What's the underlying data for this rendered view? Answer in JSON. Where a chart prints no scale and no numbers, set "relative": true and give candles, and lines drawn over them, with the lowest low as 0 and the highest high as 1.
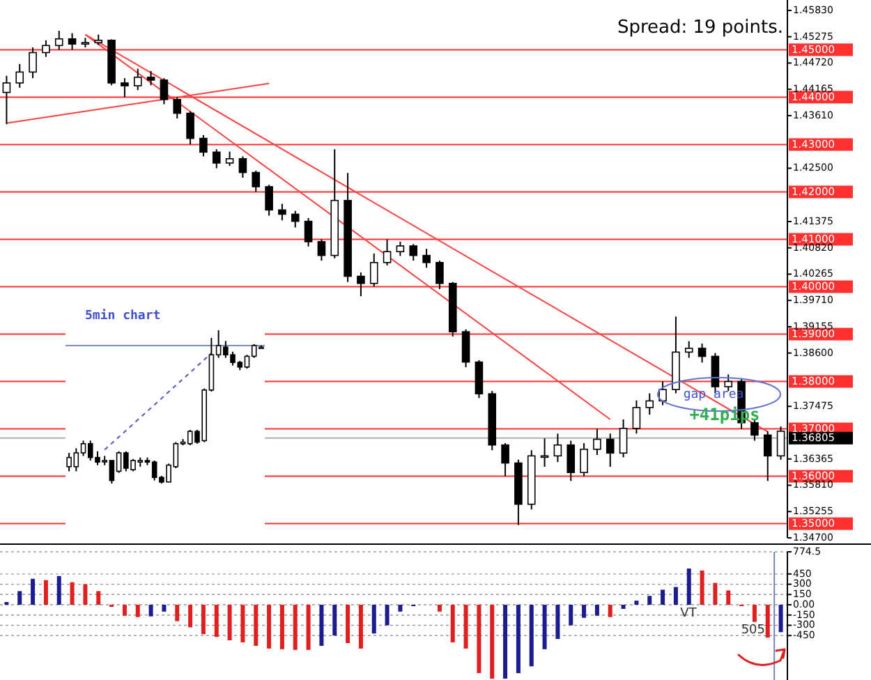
{
  "chart_data": [
    {
      "type": "candlestick",
      "categories": [
        null,
        null,
        null,
        null,
        null,
        null,
        null,
        null,
        null,
        null,
        null,
        null,
        null,
        null,
        null,
        null,
        null,
        null,
        null,
        null,
        null,
        null,
        null,
        null,
        null,
        null,
        null,
        null,
        null,
        null,
        null,
        null,
        null,
        null,
        null,
        null,
        null,
        null,
        null,
        null,
        null,
        null,
        null,
        null,
        null,
        null,
        null,
        null,
        null,
        null,
        null,
        null,
        null,
        null,
        null,
        null,
        null,
        null,
        null,
        null
      ],
      "ohlc": [
        [
          1.441,
          1.4445,
          1.4343,
          1.443
        ],
        [
          1.443,
          1.447,
          1.442,
          1.4453
        ],
        [
          1.4453,
          1.4505,
          1.444,
          1.4494
        ],
        [
          1.4494,
          1.452,
          1.4485,
          1.4509
        ],
        [
          1.4509,
          1.454,
          1.45,
          1.4523
        ],
        [
          1.4523,
          1.4535,
          1.45,
          1.4512
        ],
        [
          1.4512,
          1.4525,
          1.4505,
          1.4515
        ],
        [
          1.4515,
          1.4532,
          1.451,
          1.452
        ],
        [
          1.452,
          1.4522,
          1.4425,
          1.443
        ],
        [
          1.443,
          1.444,
          1.44,
          1.4424
        ],
        [
          1.4424,
          1.446,
          1.4415,
          1.4442
        ],
        [
          1.4442,
          1.4455,
          1.4425,
          1.4436
        ],
        [
          1.4436,
          1.444,
          1.4385,
          1.4395
        ],
        [
          1.4395,
          1.44,
          1.4355,
          1.4366
        ],
        [
          1.4366,
          1.437,
          1.43,
          1.4313
        ],
        [
          1.4313,
          1.432,
          1.4275,
          1.4284
        ],
        [
          1.4284,
          1.429,
          1.425,
          1.4261
        ],
        [
          1.4261,
          1.4285,
          1.4255,
          1.427
        ],
        [
          1.427,
          1.4275,
          1.423,
          1.4241
        ],
        [
          1.4241,
          1.4245,
          1.42,
          1.4211
        ],
        [
          1.4211,
          1.4215,
          1.415,
          1.4162
        ],
        [
          1.4162,
          1.4175,
          1.414,
          1.4153
        ],
        [
          1.4153,
          1.416,
          1.4125,
          1.4138
        ],
        [
          1.4138,
          1.4145,
          1.4085,
          1.4095
        ],
        [
          1.4095,
          1.41,
          1.4055,
          1.4066
        ],
        [
          1.4066,
          1.429,
          1.406,
          1.4182
        ],
        [
          1.4182,
          1.424,
          1.401,
          1.4022
        ],
        [
          1.4022,
          1.403,
          1.398,
          1.4007
        ],
        [
          1.4007,
          1.407,
          1.4,
          1.4051
        ],
        [
          1.4051,
          1.41,
          1.4045,
          1.4074
        ],
        [
          1.4074,
          1.4095,
          1.4065,
          1.4086
        ],
        [
          1.4086,
          1.409,
          1.4055,
          1.4066
        ],
        [
          1.4066,
          1.408,
          1.404,
          1.4051
        ],
        [
          1.4051,
          1.4055,
          1.3995,
          1.4007
        ],
        [
          1.4007,
          1.401,
          1.3895,
          1.3905
        ],
        [
          1.3905,
          1.391,
          1.383,
          1.3841
        ],
        [
          1.3841,
          1.3845,
          1.3765,
          1.3774
        ],
        [
          1.3774,
          1.378,
          1.3655,
          1.3666
        ],
        [
          1.3666,
          1.367,
          1.36,
          1.3628
        ],
        [
          1.3628,
          1.3635,
          1.3497,
          1.3541
        ],
        [
          1.3541,
          1.3655,
          1.353,
          1.3643
        ],
        [
          1.3643,
          1.368,
          1.362,
          1.3643
        ],
        [
          1.3643,
          1.369,
          1.363,
          1.3666
        ],
        [
          1.3666,
          1.3675,
          1.359,
          1.3608
        ],
        [
          1.3608,
          1.367,
          1.36,
          1.3657
        ],
        [
          1.3657,
          1.37,
          1.3645,
          1.3678
        ],
        [
          1.3678,
          1.369,
          1.362,
          1.3649
        ],
        [
          1.3649,
          1.372,
          1.364,
          1.3701
        ],
        [
          1.3701,
          1.376,
          1.369,
          1.3745
        ],
        [
          1.3745,
          1.3775,
          1.373,
          1.3759
        ],
        [
          1.3759,
          1.38,
          1.375,
          1.3783
        ],
        [
          1.3783,
          1.3937,
          1.3775,
          1.3862
        ],
        [
          1.3862,
          1.3885,
          1.385,
          1.387
        ],
        [
          1.387,
          1.388,
          1.384,
          1.3853
        ],
        [
          1.3853,
          1.386,
          1.3775,
          1.3789
        ],
        [
          1.3789,
          1.3815,
          1.378,
          1.38
        ],
        [
          1.38,
          1.3805,
          1.37,
          1.3713
        ],
        [
          1.3713,
          1.372,
          1.3675,
          1.3687
        ],
        [
          1.3687,
          1.3695,
          1.359,
          1.3643
        ],
        [
          1.3643,
          1.3705,
          1.3635,
          1.3695
        ]
      ],
      "ylim": [
        1.347,
        1.4605
      ],
      "yticks": [
        {
          "value": 1.4583,
          "label": "1.45830"
        },
        1.45275,
        {
          "value": 1.4472,
          "label": "1.44720"
        },
        1.44165,
        {
          "value": 1.4361,
          "label": "1.43610"
        },
        {
          "value": 1.425,
          "label": "1.42500"
        },
        1.41375,
        {
          "value": 1.4082,
          "label": "1.40820"
        },
        1.40265,
        {
          "value": 1.3971,
          "label": "1.39710"
        },
        1.39155,
        {
          "value": 1.386,
          "label": "1.38600"
        },
        1.37475,
        1.36365,
        {
          "value": 1.3581,
          "label": "1.35810"
        },
        1.35255,
        {
          "value": 1.347,
          "label": "1.34700"
        }
      ],
      "tick_labels": "y",
      "series": [
        {
          "type": "line",
          "values": [
            null,
            null,
            null,
            null,
            null,
            null,
            1.4532,
            null,
            null,
            null,
            null,
            null,
            null,
            null,
            null,
            null,
            null,
            null,
            null,
            null,
            null,
            null,
            null,
            null,
            null,
            null,
            null,
            null,
            null,
            null,
            null,
            null,
            null,
            null,
            null,
            null,
            null,
            null,
            null,
            null,
            null,
            null,
            null,
            null,
            null,
            null,
            1.372,
            null,
            null,
            null,
            null,
            null,
            null,
            null,
            null,
            null,
            null,
            null,
            null,
            null
          ],
          "color": "#ff4040"
        },
        {
          "type": "line",
          "values": [
            null,
            null,
            null,
            null,
            null,
            null,
            1.4532,
            null,
            null,
            null,
            null,
            null,
            null,
            null,
            null,
            null,
            null,
            null,
            null,
            null,
            null,
            null,
            null,
            null,
            null,
            null,
            null,
            null,
            null,
            null,
            null,
            null,
            null,
            null,
            null,
            null,
            null,
            null,
            null,
            null,
            null,
            null,
            null,
            null,
            null,
            null,
            null,
            null,
            null,
            null,
            null,
            null,
            null,
            null,
            null,
            null,
            null,
            null,
            1.3694,
            null
          ],
          "color": "#ff4040"
        },
        {
          "type": "line",
          "values": [
            1.4345,
            null,
            null,
            null,
            null,
            null,
            null,
            null,
            null,
            null,
            null,
            null,
            null,
            null,
            null,
            null,
            null,
            null,
            null,
            null,
            1.4429,
            null,
            null,
            null,
            null,
            null,
            null,
            null,
            null,
            null,
            null,
            null,
            null,
            null,
            null,
            null,
            null,
            null,
            null,
            null,
            null,
            null,
            null,
            null,
            null,
            null,
            null,
            null,
            null,
            null,
            null,
            null,
            null,
            null,
            null,
            null,
            null,
            null,
            null,
            null
          ],
          "color": "#ff4040"
        }
      ],
      "ref_lines": [
        {
          "axis": "y",
          "value": 1.45,
          "label": "1.45000",
          "color": "#ff3030"
        },
        {
          "axis": "y",
          "value": 1.44,
          "label": "1.44000",
          "color": "#ff3030"
        },
        {
          "axis": "y",
          "value": 1.43,
          "label": "1.43000",
          "color": "#ff3030"
        },
        {
          "axis": "y",
          "value": 1.42,
          "label": "1.42000",
          "color": "#ff3030"
        },
        {
          "axis": "y",
          "value": 1.41,
          "label": "1.41000",
          "color": "#ff3030"
        },
        {
          "axis": "y",
          "value": 1.4,
          "label": "1.40000",
          "color": "#ff3030"
        },
        {
          "axis": "y",
          "value": 1.39,
          "label": "1.39000",
          "color": "#ff3030"
        },
        {
          "axis": "y",
          "value": 1.38,
          "label": "1.38000",
          "color": "#ff3030"
        },
        {
          "axis": "y",
          "value": 1.37,
          "label": "1.37000",
          "color": "#ff3030"
        },
        {
          "axis": "y",
          "value": 1.36,
          "label": "1.36000",
          "color": "#ff3030"
        },
        {
          "axis": "y",
          "value": 1.35,
          "label": "1.35000",
          "color": "#ff3030"
        },
        {
          "axis": "y",
          "value": 1.36805,
          "label": "1.36805",
          "color": "#b0b0b0"
        }
      ],
      "annotations": [
        "Spread: 19 points.",
        "gap area",
        "+41pips"
      ]
    },
    {
      "type": "candlestick",
      "title": "5min chart",
      "relative": true,
      "categories": [
        null,
        null,
        null,
        null,
        null,
        null,
        null,
        null,
        null,
        null,
        null,
        null,
        null,
        null,
        null,
        null,
        null,
        null,
        null,
        null,
        null,
        null,
        null,
        null,
        null,
        null,
        null,
        null
      ],
      "ohlc": [
        [
          0.11,
          0.2,
          0.08,
          0.17
        ],
        [
          0.11,
          0.23,
          0.08,
          0.2
        ],
        [
          0.2,
          0.28,
          0.18,
          0.26
        ],
        [
          0.26,
          0.28,
          0.15,
          0.17
        ],
        [
          0.17,
          0.21,
          0.12,
          0.14
        ],
        [
          0.15,
          0.18,
          0.12,
          0.15
        ],
        [
          0.15,
          0.15,
          0,
          0.02
        ],
        [
          0.08,
          0.21,
          0.07,
          0.2
        ],
        [
          0.2,
          0.21,
          0.08,
          0.1
        ],
        [
          0.09,
          0.16,
          0.08,
          0.15
        ],
        [
          0.14,
          0.17,
          0.11,
          0.15
        ],
        [
          0.15,
          0.17,
          0.12,
          0.14
        ],
        [
          0.14,
          0.15,
          0.02,
          0.04
        ],
        [
          0.04,
          0.05,
          0,
          0.01
        ],
        [
          0.01,
          0.13,
          0.01,
          0.12
        ],
        [
          0.11,
          0.27,
          0.1,
          0.26
        ],
        [
          0.26,
          0.29,
          0.25,
          0.27
        ],
        [
          0.26,
          0.35,
          0.25,
          0.34
        ],
        [
          0.34,
          0.35,
          0.26,
          0.27
        ],
        [
          0.28,
          0.62,
          0.27,
          0.61
        ],
        [
          0.61,
          0.95,
          0.6,
          0.84
        ],
        [
          0.84,
          1,
          0.82,
          0.9
        ],
        [
          0.89,
          0.93,
          0.82,
          0.84
        ],
        [
          0.84,
          0.86,
          0.77,
          0.79
        ],
        [
          0.79,
          0.8,
          0.74,
          0.76
        ],
        [
          0.76,
          0.84,
          0.75,
          0.83
        ],
        [
          0.83,
          0.91,
          0.82,
          0.9
        ],
        [
          0.89,
          0.9,
          0.88,
          0.89
        ]
      ],
      "tick_labels": false,
      "series": [
        {
          "type": "line",
          "values": [
            null,
            null,
            null,
            null,
            null,
            0.22,
            null,
            null,
            null,
            null,
            null,
            null,
            null,
            null,
            null,
            null,
            null,
            null,
            null,
            null,
            0.85,
            null,
            null,
            null,
            null,
            null,
            null,
            null
          ],
          "color": "#5050d0",
          "line_style": "dashed"
        }
      ],
      "ref_lines": [
        {
          "axis": "y",
          "value": 0.9,
          "color": "#7f8fc0"
        }
      ]
    },
    {
      "type": "bar",
      "categories": [
        null,
        null,
        null,
        null,
        null,
        null,
        null,
        null,
        null,
        null,
        null,
        null,
        null,
        null,
        null,
        null,
        null,
        null,
        null,
        null,
        null,
        null,
        null,
        null,
        null,
        null,
        null,
        null,
        null,
        null,
        null,
        null,
        null,
        null,
        null,
        null,
        null,
        null,
        null,
        null,
        null,
        null,
        null,
        null,
        null,
        null,
        null,
        null,
        null,
        null,
        null,
        null,
        null,
        null,
        null,
        null,
        null,
        null,
        null,
        null
      ],
      "values": [
        40,
        200,
        380,
        360,
        420,
        330,
        300,
        200,
        -30,
        -160,
        -180,
        -170,
        -100,
        -240,
        -330,
        -430,
        -470,
        -520,
        -550,
        -600,
        -640,
        -650,
        -660,
        -660,
        -600,
        -450,
        -560,
        -640,
        -420,
        -300,
        -100,
        -20,
        0,
        -100,
        -550,
        -640,
        -1000,
        -1080,
        -1080,
        -1000,
        -900,
        -650,
        -500,
        -300,
        -190,
        -160,
        -180,
        -60,
        60,
        130,
        220,
        260,
        530,
        500,
        320,
        210,
        -20,
        -250,
        -480,
        -400
      ],
      "colors": [
        "#1c1c90",
        "#1c1c90",
        "#1c1c90",
        "#e02020",
        "#1c1c90",
        "#e02020",
        "#e02020",
        "#e02020",
        "#e02020",
        "#e02020",
        "#e02020",
        "#1c1c90",
        "#1c1c90",
        "#e02020",
        "#e02020",
        "#e02020",
        "#e02020",
        "#e02020",
        "#e02020",
        "#e02020",
        "#e02020",
        "#e02020",
        "#e02020",
        "#e02020",
        "#1c1c90",
        "#1c1c90",
        "#e02020",
        "#e02020",
        "#1c1c90",
        "#1c1c90",
        "#1c1c90",
        "#1c1c90",
        "#1c1c90",
        "#e02020",
        "#e02020",
        "#e02020",
        "#e02020",
        "#e02020",
        "#1c1c90",
        "#1c1c90",
        "#1c1c90",
        "#1c1c90",
        "#1c1c90",
        "#1c1c90",
        "#1c1c90",
        "#1c1c90",
        "#e02020",
        "#1c1c90",
        "#1c1c90",
        "#1c1c90",
        "#1c1c90",
        "#1c1c90",
        "#1c1c90",
        "#e02020",
        "#e02020",
        "#e02020",
        "#e02020",
        "#e02020",
        "#e02020",
        "#1c1c90"
      ],
      "ylim": [
        -1100,
        774.5
      ],
      "yticks": [
        774.5,
        450,
        300,
        150,
        {
          "value": 0,
          "label": "0.00"
        },
        -150,
        -300,
        -450
      ],
      "grid": "y",
      "tick_labels": "y",
      "annotations": [
        "VT",
        "505"
      ]
    }
  ]
}
